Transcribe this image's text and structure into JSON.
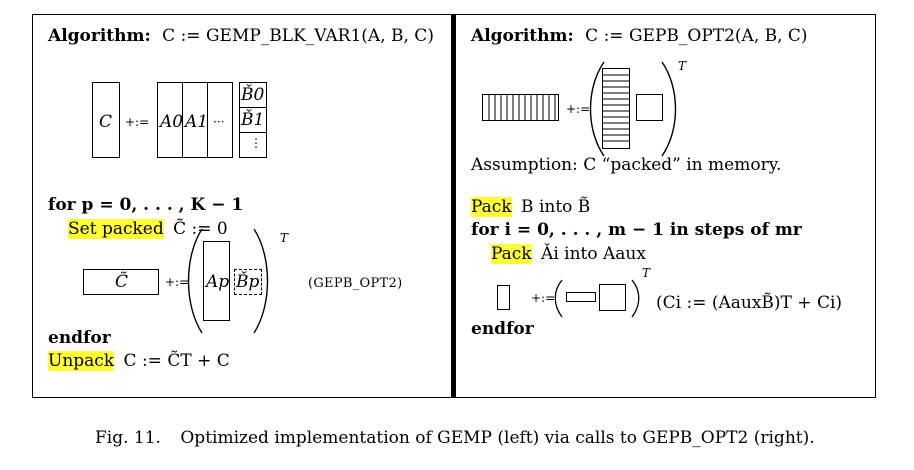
{
  "left": {
    "title_keyword": "Algorithm:",
    "title_expr": "C := GEMP_BLK_VAR1(A, B, C)",
    "diagram": {
      "c_label": "C",
      "op": "+:=",
      "a0": "A0",
      "a1": "A1",
      "dots": "···",
      "b0": "B̌0",
      "b1": "B̌1",
      "vdots": "⋮"
    },
    "for_line": "for p = 0, . . . , K − 1",
    "set_packed_hl": "Set packed",
    "set_packed_rest": "C̃ := 0",
    "inner": {
      "c_tilde": "C̃",
      "op": "+:=",
      "ap": "Ap",
      "bp": "B̌p",
      "transpose": "T",
      "call": "(GEPB_OPT2)"
    },
    "endfor": "endfor",
    "unpack_hl": "Unpack",
    "unpack_rest": "C := C̃T + C"
  },
  "right": {
    "title_keyword": "Algorithm:",
    "title_expr": "C := GEPB_OPT2(A, B, C)",
    "diagram": {
      "op": "+:=",
      "transpose": "T"
    },
    "assumption": "Assumption: C “packed” in memory.",
    "pack_hl": "Pack",
    "pack_rest": "B into B̃",
    "for_line": "for i = 0, . . . , m − 1 in steps of mr",
    "pack2_hl": "Pack",
    "pack2_rest": "Ǎi into Aaux",
    "inner": {
      "op": "+:=",
      "transpose": "T",
      "formula": "(Ci := (AauxB̃)T + Ci)"
    },
    "endfor": "endfor"
  },
  "caption": {
    "fig": "Fig. 11.",
    "text": "Optimized implementation of GEMP (left) via calls to GEPB_OPT2 (right)."
  },
  "colors": {
    "highlight": "#ffff33"
  }
}
